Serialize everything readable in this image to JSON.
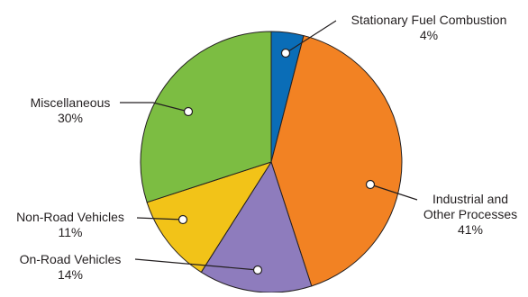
{
  "chart_data": {
    "type": "pie",
    "title": "",
    "start_angle_deg": 0,
    "direction": "clockwise",
    "slice_border_color": "#231f20",
    "slices": [
      {
        "label_lines": [
          "Stationary Fuel Combustion"
        ],
        "percent_label": "4%",
        "value": 4,
        "color": "#0a6db7"
      },
      {
        "label_lines": [
          "Industrial and",
          "Other Processes"
        ],
        "percent_label": "41%",
        "value": 41,
        "color": "#f28223"
      },
      {
        "label_lines": [
          "On-Road Vehicles"
        ],
        "percent_label": "14%",
        "value": 14,
        "color": "#8e7cbd"
      },
      {
        "label_lines": [
          "Non-Road Vehicles"
        ],
        "percent_label": "11%",
        "value": 11,
        "color": "#f2c318"
      },
      {
        "label_lines": [
          "Miscellaneous"
        ],
        "percent_label": "30%",
        "value": 30,
        "color": "#7cbd42"
      }
    ]
  }
}
